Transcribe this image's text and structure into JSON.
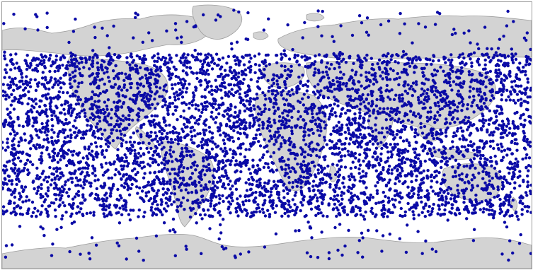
{
  "map": {
    "projection": "equirectangular",
    "coverage": "world",
    "colors": {
      "ocean": "#ffffff",
      "land": "#d3d3d3",
      "coastline": "#9e9e9e",
      "frame": "#9a9a9a",
      "points": "#0a0aa6"
    },
    "dense_band_lat_range_deg": [
      -55,
      55
    ],
    "sparse_band_lat_range_deg": [
      [
        55,
        85
      ],
      [
        -85,
        -55
      ]
    ],
    "marker": "filled-circle"
  }
}
